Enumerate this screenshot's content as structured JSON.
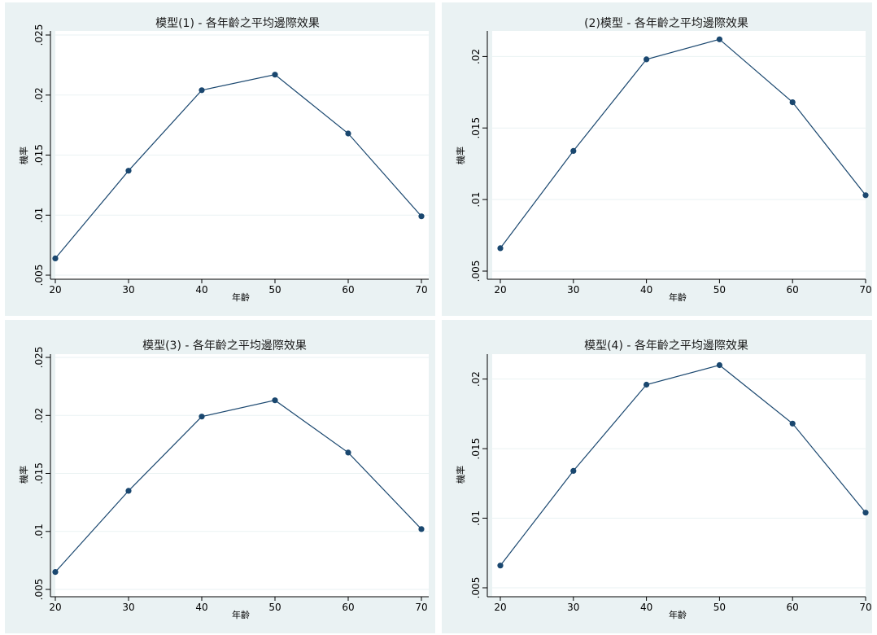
{
  "colors": {
    "background": "#eaf2f3",
    "plot_region": "#ffffff",
    "series": "#1a476f"
  },
  "chart_data": [
    {
      "type": "line",
      "title": "模型(1) - 各年齡之平均邊際效果",
      "xlabel": "年齡",
      "ylabel": "機率",
      "x": [
        20,
        30,
        40,
        50,
        60,
        70
      ],
      "xticks": [
        20,
        30,
        40,
        50,
        60,
        70
      ],
      "xtick_labels": [
        "20",
        "30",
        "40",
        "50",
        "60",
        "70"
      ],
      "xlim": [
        20,
        70
      ],
      "yticks": [
        0.005,
        0.01,
        0.015,
        0.02,
        0.025
      ],
      "ytick_labels": [
        ".005",
        ".01",
        ".015",
        ".02",
        ".025"
      ],
      "ylim": [
        0.005,
        0.025
      ],
      "grid": true,
      "series": [
        {
          "values": [
            0.0064,
            0.0137,
            0.0204,
            0.0217,
            0.0168,
            0.0099
          ]
        }
      ]
    },
    {
      "type": "line",
      "title": "(2)模型 - 各年齡之平均邊際效果",
      "xlabel": "年齡",
      "ylabel": "機率",
      "x": [
        20,
        30,
        40,
        50,
        60,
        70
      ],
      "xticks": [
        20,
        30,
        40,
        50,
        60,
        70
      ],
      "xtick_labels": [
        "20",
        "30",
        "40",
        "50",
        "60",
        "70"
      ],
      "xlim": [
        20,
        70
      ],
      "yticks": [
        0.005,
        0.01,
        0.015,
        0.02
      ],
      "ytick_labels": [
        ".005",
        ".01",
        ".015",
        ".02"
      ],
      "ylim": [
        0.005,
        0.0215
      ],
      "grid": true,
      "series": [
        {
          "values": [
            0.0066,
            0.0134,
            0.0198,
            0.0212,
            0.0168,
            0.0103
          ]
        }
      ]
    },
    {
      "type": "line",
      "title": "模型(3) - 各年齡之平均邊際效果",
      "xlabel": "年齡",
      "ylabel": "機率",
      "x": [
        20,
        30,
        40,
        50,
        60,
        70
      ],
      "xticks": [
        20,
        30,
        40,
        50,
        60,
        70
      ],
      "xtick_labels": [
        "20",
        "30",
        "40",
        "50",
        "60",
        "70"
      ],
      "xlim": [
        20,
        70
      ],
      "yticks": [
        0.005,
        0.01,
        0.015,
        0.02,
        0.025
      ],
      "ytick_labels": [
        ".005",
        ".01",
        ".015",
        ".02",
        ".025"
      ],
      "ylim": [
        0.005,
        0.025
      ],
      "grid": true,
      "series": [
        {
          "values": [
            0.0065,
            0.0135,
            0.0199,
            0.0213,
            0.0168,
            0.0102
          ]
        }
      ]
    },
    {
      "type": "line",
      "title": "模型(4) - 各年齡之平均邊際效果",
      "xlabel": "年齡",
      "ylabel": "機率",
      "x": [
        20,
        30,
        40,
        50,
        60,
        70
      ],
      "xticks": [
        20,
        30,
        40,
        50,
        60,
        70
      ],
      "xtick_labels": [
        "20",
        "30",
        "40",
        "50",
        "60",
        "70"
      ],
      "xlim": [
        20,
        70
      ],
      "yticks": [
        0.005,
        0.01,
        0.015,
        0.02
      ],
      "ytick_labels": [
        ".005",
        ".01",
        ".015",
        ".02"
      ],
      "ylim": [
        0.005,
        0.0215
      ],
      "grid": true,
      "series": [
        {
          "values": [
            0.0066,
            0.0134,
            0.0196,
            0.021,
            0.0168,
            0.0104
          ]
        }
      ]
    }
  ]
}
